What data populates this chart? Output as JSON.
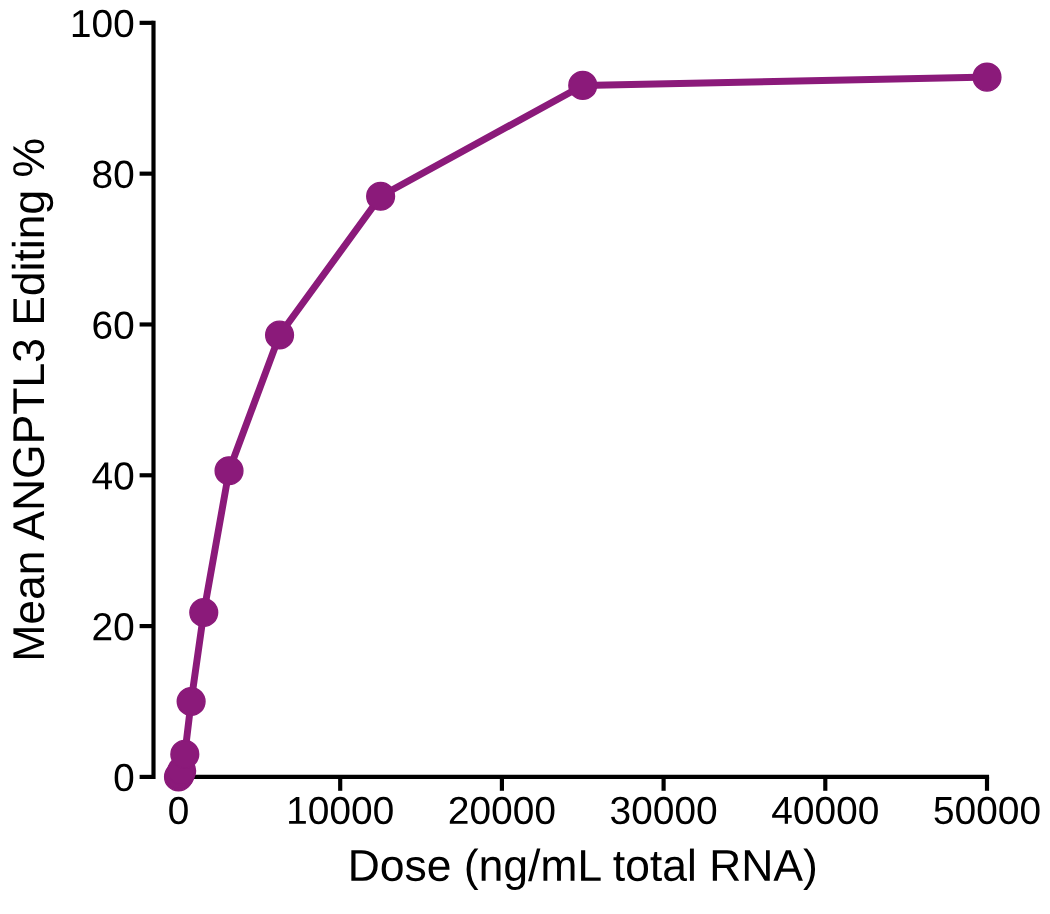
{
  "chart_data": {
    "type": "line",
    "xlabel": "Dose (ng/mL total RNA)",
    "ylabel": "Mean ANGPTL3 Editing %",
    "series": [
      {
        "color": "#8b1a7a",
        "x": [
          0,
          98,
          195,
          390,
          781,
          1562.5,
          3125,
          6250,
          12500,
          25000,
          50000
        ],
        "values": [
          0,
          0.3,
          0.8,
          3,
          10,
          21.8,
          40.6,
          58.6,
          77,
          91.7,
          92.8
        ]
      }
    ],
    "xlim": [
      0,
      50000
    ],
    "xticks": [
      0,
      10000,
      20000,
      30000,
      40000,
      50000
    ],
    "ylim": [
      0,
      100
    ],
    "yticks": [
      0,
      20,
      40,
      60,
      80,
      100
    ],
    "grid": false,
    "legend": false,
    "marker": "circle",
    "line_style": "solid"
  }
}
